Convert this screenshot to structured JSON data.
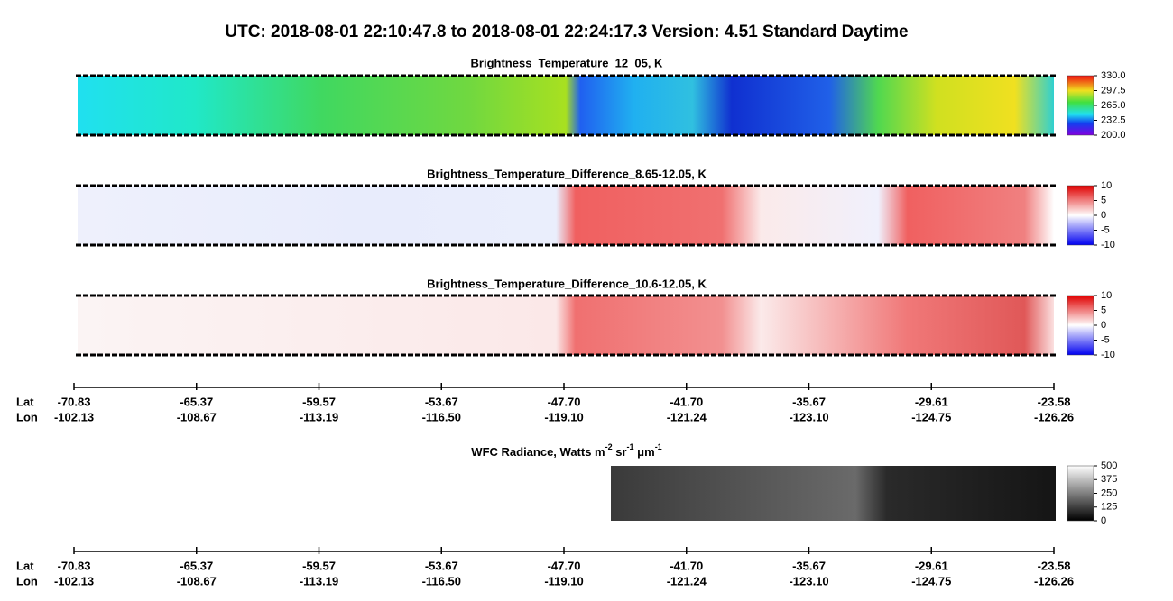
{
  "title": "UTC:  2018-08-01   22:10:47.8  to  2018-08-01   22:24:17.3    Version: 4.51  Standard Daytime",
  "panels": [
    {
      "title": "Brightness_Temperature_12_05, K",
      "colorbar": {
        "ticks": [
          {
            "value": 200,
            "label": "200.0"
          },
          {
            "value": 232.5,
            "label": "232.5"
          },
          {
            "value": 265,
            "label": "265.0"
          },
          {
            "value": 297.5,
            "label": "297.5"
          },
          {
            "value": 330,
            "label": "330.0"
          }
        ]
      }
    },
    {
      "title": "Brightness_Temperature_Difference_8.65-12.05, K",
      "colorbar": {
        "ticks": [
          -10,
          -5,
          0,
          5,
          10
        ]
      }
    },
    {
      "title": "Brightness_Temperature_Difference_10.6-12.05, K",
      "colorbar": {
        "ticks": [
          -10,
          -5,
          0,
          5,
          10
        ]
      }
    },
    {
      "title_parts": [
        {
          "text": "WFC Radiance, Watts m",
          "sup": false
        },
        {
          "text": "-2",
          "sup": true
        },
        {
          "text": " sr",
          "sup": false
        },
        {
          "text": "-1",
          "sup": true
        },
        {
          "text": " μm",
          "sup": false
        },
        {
          "text": "-1",
          "sup": true
        }
      ],
      "colorbar": {
        "ticks": [
          0,
          125,
          250,
          375,
          500
        ]
      }
    }
  ],
  "axis": {
    "lat_label": "Lat",
    "lon_label": "Lon",
    "lat": [
      -70.83,
      -65.37,
      -59.57,
      -53.67,
      {
        "value": -47.7,
        "label": "-47.70"
      },
      {
        "value": -41.7,
        "label": "-41.70"
      },
      -35.67,
      -29.61,
      -23.58
    ],
    "lon": [
      -102.13,
      -108.67,
      -113.19,
      {
        "value": -116.5,
        "label": "-116.50"
      },
      {
        "value": -119.1,
        "label": "-119.10"
      },
      -121.24,
      {
        "value": -123.1,
        "label": "-123.10"
      },
      -124.75,
      -126.26
    ]
  }
}
